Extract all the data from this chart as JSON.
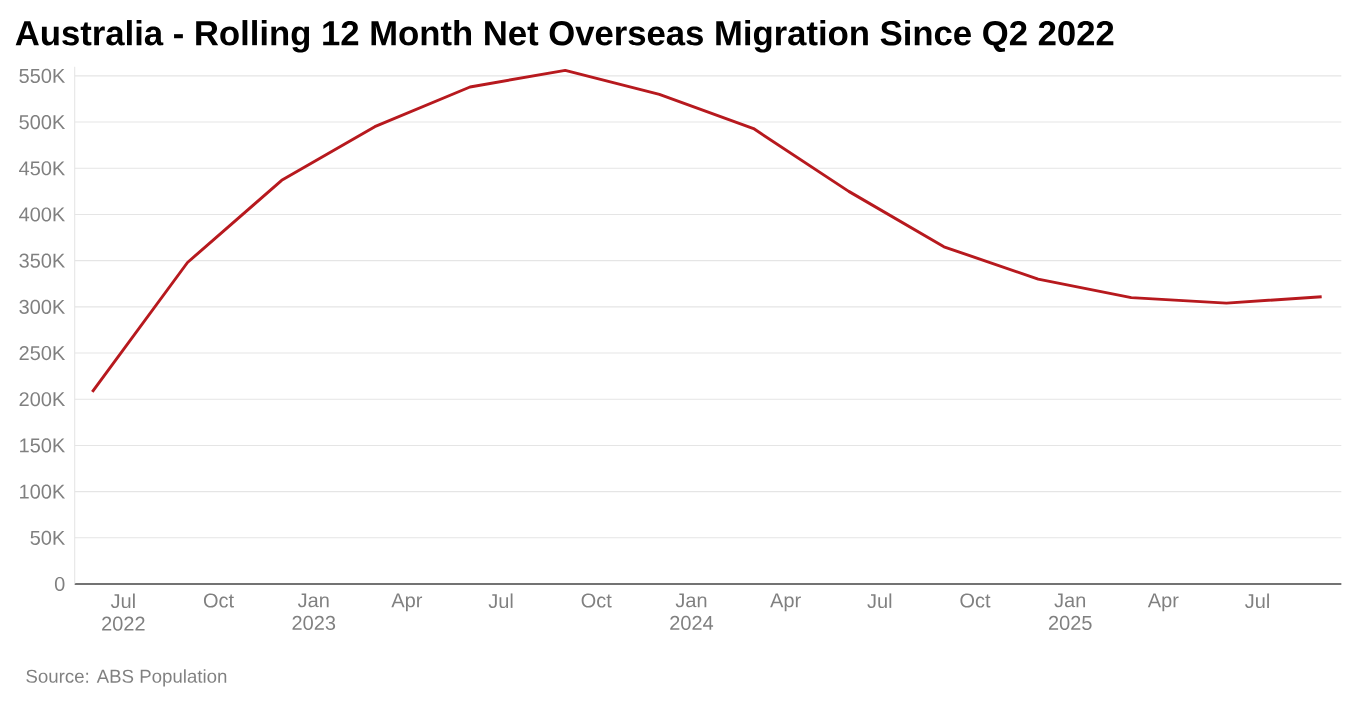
{
  "chart_data": {
    "type": "line",
    "title": "Australia - Rolling 12 Month Net Overseas Migration Since Q2 2022",
    "x": [
      "2022-06",
      "2022-09",
      "2022-12",
      "2023-03",
      "2023-06",
      "2023-09",
      "2023-12",
      "2024-03",
      "2024-06",
      "2024-09",
      "2024-12",
      "2025-03",
      "2025-06",
      "2025-09"
    ],
    "series": [
      {
        "color": "#b7191e",
        "values": [
          208000,
          348000,
          437000,
          495000,
          538000,
          556000,
          530000,
          493000,
          425000,
          365000,
          330000,
          310000,
          304000,
          311000
        ]
      }
    ],
    "xlim": [
      "2022-05-15",
      "2025-09-20"
    ],
    "xticks": [
      {
        "value": "2022-07",
        "label": "Jul 2022"
      },
      {
        "value": "2022-10",
        "label": "Oct"
      },
      {
        "value": "2023-01",
        "label": "Jan 2023"
      },
      {
        "value": "2023-04",
        "label": "Apr"
      },
      {
        "value": "2023-07",
        "label": "Jul"
      },
      {
        "value": "2023-10",
        "label": "Oct"
      },
      {
        "value": "2024-01",
        "label": "Jan 2024"
      },
      {
        "value": "2024-04",
        "label": "Apr"
      },
      {
        "value": "2024-07",
        "label": "Jul"
      },
      {
        "value": "2024-10",
        "label": "Oct"
      },
      {
        "value": "2025-01",
        "label": "Jan 2025"
      },
      {
        "value": "2025-04",
        "label": "Apr"
      },
      {
        "value": "2025-07",
        "label": "Jul"
      }
    ],
    "ylim": [
      0,
      560000
    ],
    "yticks": [
      {
        "value": 0,
        "label": "0"
      },
      {
        "value": 50000,
        "label": "50K"
      },
      {
        "value": 100000,
        "label": "100K"
      },
      {
        "value": 150000,
        "label": "150K"
      },
      {
        "value": 200000,
        "label": "200K"
      },
      {
        "value": 250000,
        "label": "250K"
      },
      {
        "value": 300000,
        "label": "300K"
      },
      {
        "value": 350000,
        "label": "350K"
      },
      {
        "value": 400000,
        "label": "400K"
      },
      {
        "value": 450000,
        "label": "450K"
      },
      {
        "value": 500000,
        "label": "500K"
      },
      {
        "value": 550000,
        "label": "550K"
      }
    ],
    "grid": "y",
    "legend": false,
    "marker": "none",
    "line_style": "solid",
    "annotations": [
      "Source: ABS Population"
    ]
  }
}
